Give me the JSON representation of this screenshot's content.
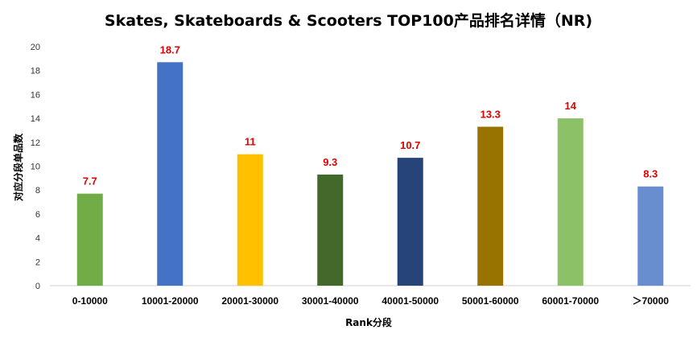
{
  "chart_data": {
    "type": "bar",
    "title": "Skates, Skateboards & Scooters TOP100产品排名详情（NR)",
    "xlabel": "Rank分段",
    "ylabel": "对应分段单品数",
    "categories": [
      "0-10000",
      "10001-20000",
      "20001-30000",
      "30001-40000",
      "40001-50000",
      "50001-60000",
      "60001-70000",
      "＞70000"
    ],
    "values": [
      7.7,
      18.7,
      11,
      9.3,
      10.7,
      13.3,
      14,
      8.3
    ],
    "data_labels": [
      "7.7",
      "18.7",
      "11",
      "9.3",
      "10.7",
      "13.3",
      "14",
      "8.3"
    ],
    "ylim": [
      0,
      20
    ],
    "yticks": [
      "0",
      "2",
      "4",
      "6",
      "8",
      "10",
      "12",
      "14",
      "16",
      "18",
      "20"
    ],
    "colors": [
      "#70ad47",
      "#4472c4",
      "#ffc000",
      "#43682b",
      "#264478",
      "#997300",
      "#8cc168",
      "#698ed0"
    ],
    "label_color": "#e00000",
    "grid": false,
    "legend": "none"
  }
}
